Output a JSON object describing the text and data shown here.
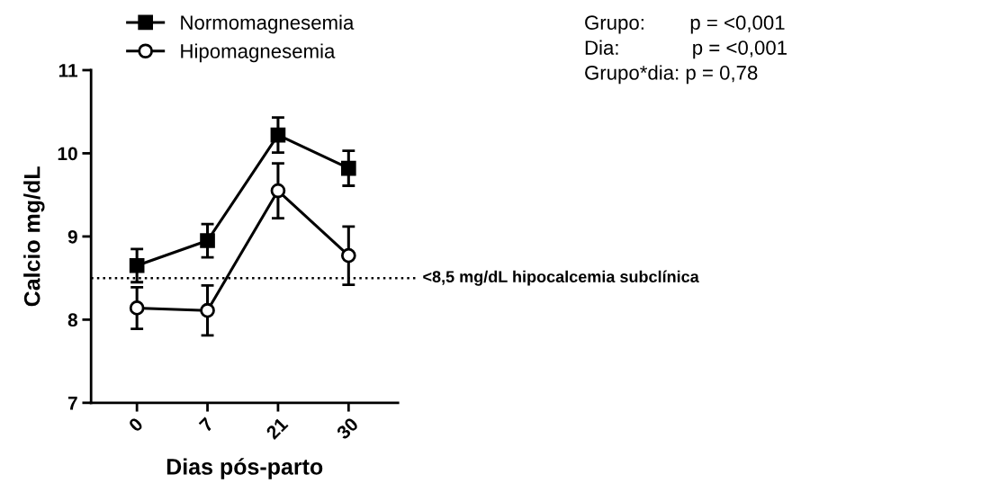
{
  "chart_data": {
    "type": "line",
    "xlabel": "Dias pós-parto",
    "ylabel": "Calcio mg/dL",
    "categories": [
      "0",
      "7",
      "21",
      "30"
    ],
    "series": [
      {
        "name": "Normomagnesemia",
        "color": "#000000",
        "marker": "square",
        "values": [
          8.65,
          8.95,
          10.22,
          9.82
        ],
        "errors": [
          0.2,
          0.2,
          0.21,
          0.21
        ]
      },
      {
        "name": "Hipomagnesemia",
        "color": "#000000",
        "marker": "circle",
        "values": [
          8.14,
          8.11,
          9.55,
          8.77
        ],
        "errors": [
          0.25,
          0.3,
          0.33,
          0.35
        ]
      }
    ],
    "ylim": [
      7,
      11
    ],
    "yticks": [
      7,
      8,
      9,
      10,
      11
    ],
    "ref_lines": [
      {
        "axis": "y",
        "value": 8.5,
        "label": "<8,5 mg/dL hipocalcemia subclínica",
        "color": "#000000",
        "line_style": "dotted"
      }
    ],
    "annotations": [
      "Grupo:        p = <0,001",
      "Dia:             p = <0,001",
      "Grupo*dia: p = 0,78"
    ],
    "legend": "top left",
    "grid": false
  }
}
